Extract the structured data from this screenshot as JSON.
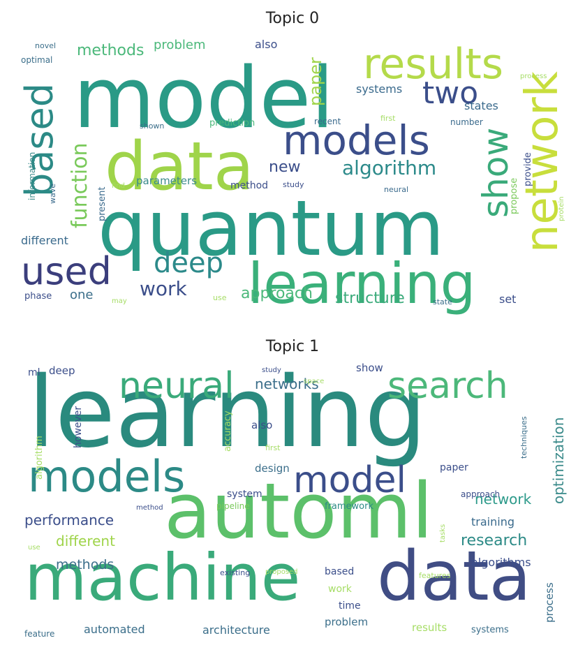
{
  "topics": [
    {
      "title": "Topic 0",
      "words": [
        {
          "text": "model",
          "color": "#2a9a86"
        },
        {
          "text": "quantum",
          "color": "#2a9a86"
        },
        {
          "text": "data",
          "color": "#9fd44a"
        },
        {
          "text": "learning",
          "color": "#3ab07a"
        },
        {
          "text": "network",
          "color": "#c8de3c"
        },
        {
          "text": "results",
          "color": "#b4da4a"
        },
        {
          "text": "models",
          "color": "#3b4e8a"
        },
        {
          "text": "used",
          "color": "#3b3e7c"
        },
        {
          "text": "based",
          "color": "#2c8a86"
        },
        {
          "text": "show",
          "color": "#3aaa7a"
        },
        {
          "text": "two",
          "color": "#3b4e8a"
        },
        {
          "text": "deep",
          "color": "#2c8a8a"
        },
        {
          "text": "function",
          "color": "#79c95a"
        },
        {
          "text": "algorithm",
          "color": "#2c8a8a"
        },
        {
          "text": "approach",
          "color": "#4bb87a"
        },
        {
          "text": "structure",
          "color": "#3aaa7a"
        },
        {
          "text": "work",
          "color": "#3b4e8a"
        },
        {
          "text": "methods",
          "color": "#4bb87a"
        },
        {
          "text": "problem",
          "color": "#4bb87a"
        },
        {
          "text": "paper",
          "color": "#9fd44a"
        },
        {
          "text": "new",
          "color": "#3b4e8a"
        },
        {
          "text": "systems",
          "color": "#3a6a8c"
        },
        {
          "text": "different",
          "color": "#3a6a8c"
        },
        {
          "text": "parameters",
          "color": "#3a8a8a"
        },
        {
          "text": "one",
          "color": "#3b6e8a"
        },
        {
          "text": "also",
          "color": "#3b4e8a"
        },
        {
          "text": "states",
          "color": "#3a6a8c"
        },
        {
          "text": "set",
          "color": "#3b4e8a"
        },
        {
          "text": "method",
          "color": "#3b4e8a"
        },
        {
          "text": "prediction",
          "color": "#4bb87a"
        },
        {
          "text": "recent",
          "color": "#3a6a8c"
        },
        {
          "text": "number",
          "color": "#3a6a8c"
        },
        {
          "text": "first",
          "color": "#a6dd66"
        },
        {
          "text": "study",
          "color": "#3b4e8a"
        },
        {
          "text": "shown",
          "color": "#3b6e8a"
        },
        {
          "text": "find",
          "color": "#a6dd66"
        },
        {
          "text": "present",
          "color": "#3a6a8c"
        },
        {
          "text": "provide",
          "color": "#3b4e8a"
        },
        {
          "text": "propose",
          "color": "#7ac95a"
        },
        {
          "text": "neural",
          "color": "#3a6a8c"
        },
        {
          "text": "process",
          "color": "#a6dd66"
        },
        {
          "text": "protein",
          "color": "#a6dd66"
        },
        {
          "text": "information",
          "color": "#3a8a8a"
        },
        {
          "text": "wave",
          "color": "#3a6a8c"
        },
        {
          "text": "novel",
          "color": "#3b6e8a"
        },
        {
          "text": "optimal",
          "color": "#3b6e8a"
        },
        {
          "text": "phase",
          "color": "#3b4e8a"
        },
        {
          "text": "may",
          "color": "#a6dd66"
        },
        {
          "text": "use",
          "color": "#a6dd66"
        },
        {
          "text": "state",
          "color": "#3b6e8a"
        }
      ]
    },
    {
      "title": "Topic 1",
      "words": [
        {
          "text": "learning",
          "color": "#2a8a7e"
        },
        {
          "text": "automl",
          "color": "#5cc06a"
        },
        {
          "text": "machine",
          "color": "#3aaa7a"
        },
        {
          "text": "data",
          "color": "#404d84"
        },
        {
          "text": "models",
          "color": "#2c8a86"
        },
        {
          "text": "model",
          "color": "#3b4e8a"
        },
        {
          "text": "search",
          "color": "#4cb87a"
        },
        {
          "text": "neural",
          "color": "#3aaa7a"
        },
        {
          "text": "networks",
          "color": "#3b6e8a"
        },
        {
          "text": "performance",
          "color": "#3b4e8a"
        },
        {
          "text": "different",
          "color": "#9fd44a"
        },
        {
          "text": "research",
          "color": "#2c8a86"
        },
        {
          "text": "methods",
          "color": "#3b6e8a"
        },
        {
          "text": "optimization",
          "color": "#3a8a8a"
        },
        {
          "text": "network",
          "color": "#2c9a8a"
        },
        {
          "text": "training",
          "color": "#3a6a8c"
        },
        {
          "text": "algorithms",
          "color": "#3b4e8a"
        },
        {
          "text": "design",
          "color": "#3b6e8a"
        },
        {
          "text": "system",
          "color": "#3b4e8a"
        },
        {
          "text": "paper",
          "color": "#3b4e8a"
        },
        {
          "text": "show",
          "color": "#3b4e8a"
        },
        {
          "text": "also",
          "color": "#3b4e8a"
        },
        {
          "text": "deep",
          "color": "#3b4e8a"
        },
        {
          "text": "ml",
          "color": "#3b4e8a"
        },
        {
          "text": "however",
          "color": "#3b4e8a"
        },
        {
          "text": "accuracy",
          "color": "#a6dd66"
        },
        {
          "text": "algorithm",
          "color": "#a6dd66"
        },
        {
          "text": "pipeline",
          "color": "#7ac95a"
        },
        {
          "text": "framework",
          "color": "#2c8a86"
        },
        {
          "text": "approach",
          "color": "#3b4e8a"
        },
        {
          "text": "techniques",
          "color": "#3b6e8a"
        },
        {
          "text": "based",
          "color": "#3b4e8a"
        },
        {
          "text": "work",
          "color": "#a6dd66"
        },
        {
          "text": "time",
          "color": "#3b4e8a"
        },
        {
          "text": "problem",
          "color": "#3b6e8a"
        },
        {
          "text": "results",
          "color": "#a6dd66"
        },
        {
          "text": "systems",
          "color": "#3b6e8a"
        },
        {
          "text": "architecture",
          "color": "#3b6e8a"
        },
        {
          "text": "automated",
          "color": "#3b6e8a"
        },
        {
          "text": "feature",
          "color": "#3b6e8a"
        },
        {
          "text": "process",
          "color": "#3b6e8a"
        },
        {
          "text": "features",
          "color": "#a6dd66"
        },
        {
          "text": "existing",
          "color": "#3b4e8a"
        },
        {
          "text": "proposed",
          "color": "#a6dd66"
        },
        {
          "text": "tasks",
          "color": "#a6dd66"
        },
        {
          "text": "method",
          "color": "#3b4e8a"
        },
        {
          "text": "study",
          "color": "#3b4e8a"
        },
        {
          "text": "space",
          "color": "#a6dd66"
        },
        {
          "text": "first",
          "color": "#a6dd66"
        },
        {
          "text": "use",
          "color": "#a6dd66"
        }
      ]
    }
  ]
}
